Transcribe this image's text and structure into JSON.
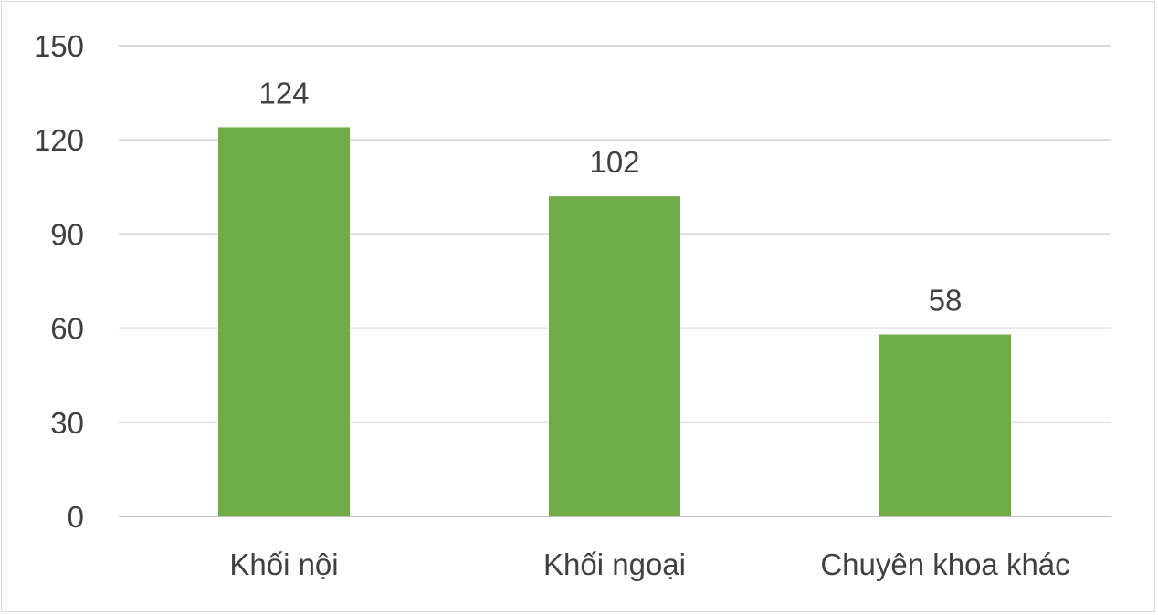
{
  "chart_data": {
    "type": "bar",
    "categories": [
      "Khối nội",
      "Khối ngoại",
      "Chuyên khoa khác"
    ],
    "values": [
      124,
      102,
      58
    ],
    "ylim": [
      0,
      150
    ],
    "yticks": [
      0,
      30,
      60,
      90,
      120,
      150
    ],
    "grid": true,
    "bar_color": "#70ad47",
    "data_labels": true
  }
}
